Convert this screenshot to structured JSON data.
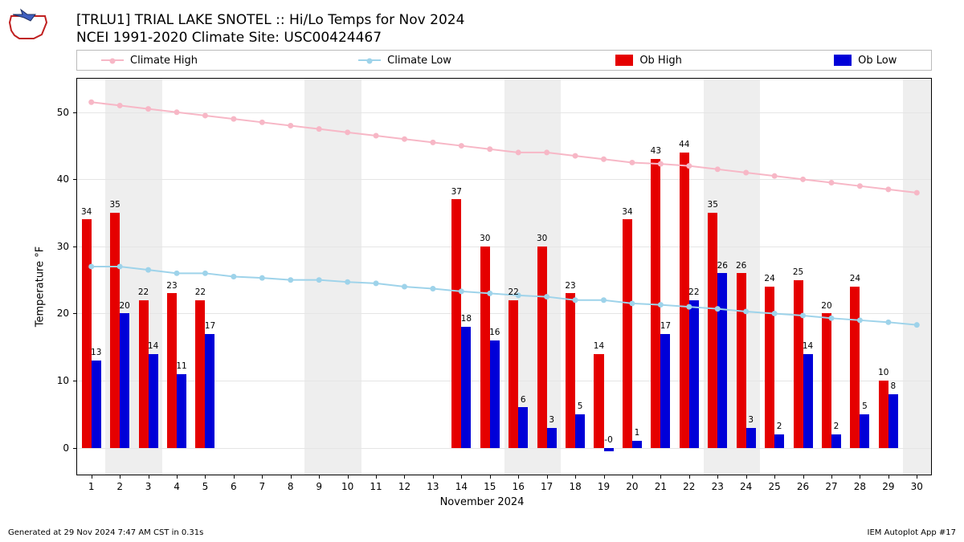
{
  "title_line1": "[TRLU1] TRIAL LAKE SNOTEL :: Hi/Lo Temps for Nov 2024",
  "title_line2": "NCEI 1991-2020 Climate Site: USC00424467",
  "footer_left": "Generated at 29 Nov 2024 7:47 AM CST in 0.31s",
  "footer_right": "IEM Autoplot App #17",
  "ylabel": "Temperature °F",
  "xlabel": "November 2024",
  "legend": {
    "climate_high": "Climate High",
    "climate_low": "Climate Low",
    "ob_high": "Ob High",
    "ob_low": "Ob Low"
  },
  "colors": {
    "climate_high": "#f7b7c6",
    "climate_low": "#9ed3ea",
    "ob_high": "#e50000",
    "ob_low": "#0000d8",
    "weekend_shade": "#eeeeee",
    "grid": "#e5e5e5",
    "background": "#ffffff"
  },
  "chart": {
    "type": "bar+line",
    "ylim": [
      -4,
      55
    ],
    "yticks": [
      0,
      10,
      20,
      30,
      40,
      50
    ],
    "days": [
      1,
      2,
      3,
      4,
      5,
      6,
      7,
      8,
      9,
      10,
      11,
      12,
      13,
      14,
      15,
      16,
      17,
      18,
      19,
      20,
      21,
      22,
      23,
      24,
      25,
      26,
      27,
      28,
      29,
      30
    ],
    "weekend_days": [
      2,
      3,
      9,
      10,
      16,
      17,
      23,
      24,
      30
    ],
    "climate_high": [
      51.5,
      51,
      50.5,
      50,
      49.5,
      49,
      48.5,
      48,
      47.5,
      47,
      46.5,
      46,
      45.5,
      45,
      44.5,
      44,
      44,
      43.5,
      43,
      42.5,
      42.3,
      42,
      41.5,
      41,
      40.5,
      40,
      39.5,
      39,
      38.5,
      38
    ],
    "climate_low": [
      27,
      27,
      26.5,
      26,
      26,
      25.5,
      25.3,
      25,
      25,
      24.7,
      24.5,
      24,
      23.7,
      23.3,
      23,
      22.7,
      22.5,
      22,
      22,
      21.5,
      21.3,
      21,
      20.7,
      20.3,
      20,
      19.7,
      19.3,
      19,
      18.7,
      18.3
    ],
    "ob_high": [
      34,
      35,
      22,
      23,
      22,
      null,
      null,
      null,
      null,
      null,
      null,
      null,
      null,
      37,
      30,
      22,
      30,
      23,
      14,
      34,
      43,
      44,
      35,
      26,
      24,
      25,
      20,
      24,
      10,
      null
    ],
    "ob_low": [
      13,
      20,
      14,
      11,
      17,
      null,
      null,
      null,
      null,
      null,
      null,
      null,
      null,
      18,
      16,
      6,
      3,
      5,
      -0.5,
      1,
      17,
      22,
      26,
      3,
      2,
      14,
      2,
      5,
      8,
      null
    ],
    "ob_high_labels": [
      "34",
      "35",
      "22",
      "23",
      "22",
      null,
      null,
      null,
      null,
      null,
      null,
      null,
      null,
      "37",
      "30",
      "22",
      "30",
      "23",
      "14",
      "34",
      "43",
      "44",
      "35",
      "26",
      "24",
      "25",
      "20",
      "24",
      "10",
      null
    ],
    "ob_low_labels": [
      "13",
      "20",
      "14",
      "11",
      "17",
      null,
      null,
      null,
      null,
      null,
      null,
      null,
      null,
      "18",
      "16",
      "6",
      "3",
      "5",
      "-0",
      "1",
      "17",
      "22",
      "26",
      "3",
      "2",
      "14",
      "2",
      "5",
      "8",
      null
    ],
    "bar_width": 0.34
  },
  "logo": {
    "bg": "#ffffff",
    "outline": "#c02020",
    "accent": "#202080"
  }
}
